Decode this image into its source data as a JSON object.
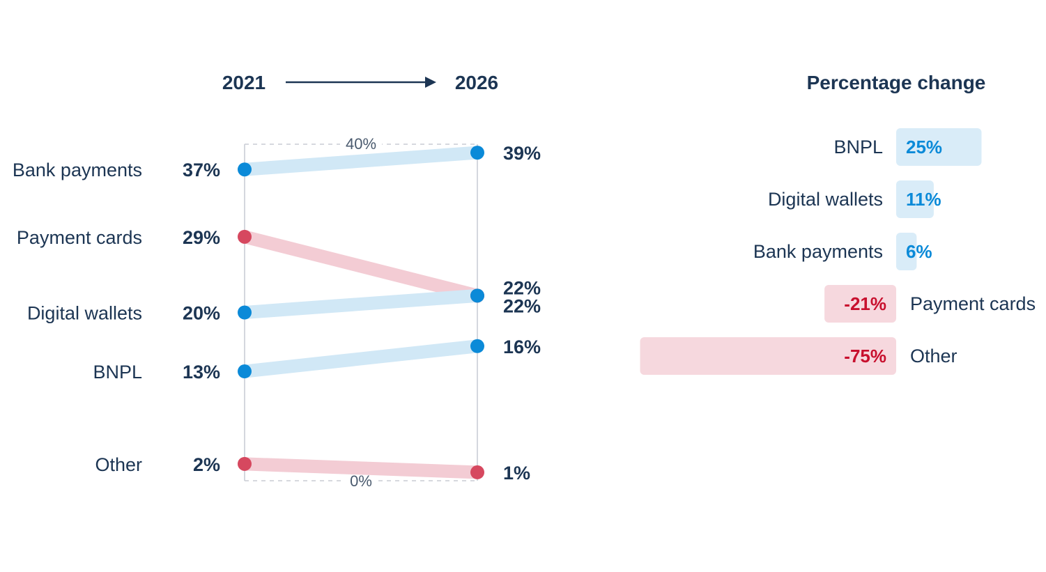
{
  "chart_data": [
    {
      "type": "slope",
      "x_labels": [
        "2021",
        "2026"
      ],
      "axis_top_label": "40%",
      "axis_bottom_label": "0%",
      "ylim": [
        0,
        40
      ],
      "series": [
        {
          "name": "Bank payments",
          "start": 37,
          "end": 39,
          "start_label": "37%",
          "end_label": "39%",
          "trend": "up"
        },
        {
          "name": "Payment cards",
          "start": 29,
          "end": 22,
          "start_label": "29%",
          "end_label": "22%",
          "trend": "down"
        },
        {
          "name": "Digital wallets",
          "start": 20,
          "end": 22,
          "start_label": "20%",
          "end_label": "22%",
          "trend": "up"
        },
        {
          "name": "BNPL",
          "start": 13,
          "end": 16,
          "start_label": "13%",
          "end_label": "16%",
          "trend": "up"
        },
        {
          "name": "Other",
          "start": 2,
          "end": 1,
          "start_label": "2%",
          "end_label": "1%",
          "trend": "down"
        }
      ]
    },
    {
      "type": "bar",
      "title": "Percentage change",
      "categories": [
        "BNPL",
        "Digital wallets",
        "Bank payments",
        "Payment cards",
        "Other"
      ],
      "values": [
        25,
        11,
        6,
        -21,
        -75
      ],
      "labels": [
        "25%",
        "11%",
        "6%",
        "-21%",
        "-75%"
      ]
    }
  ],
  "colors": {
    "up_dot": "#0b8ad8",
    "up_line": "#d1e8f6",
    "down_dot": "#d6485f",
    "down_line": "#f3ccd4",
    "text_dark": "#1c3553",
    "pos_text": "#0b8ad8",
    "pos_bar": "#d9ecf8",
    "neg_text": "#c8102e",
    "neg_bar": "#f6d8de"
  }
}
